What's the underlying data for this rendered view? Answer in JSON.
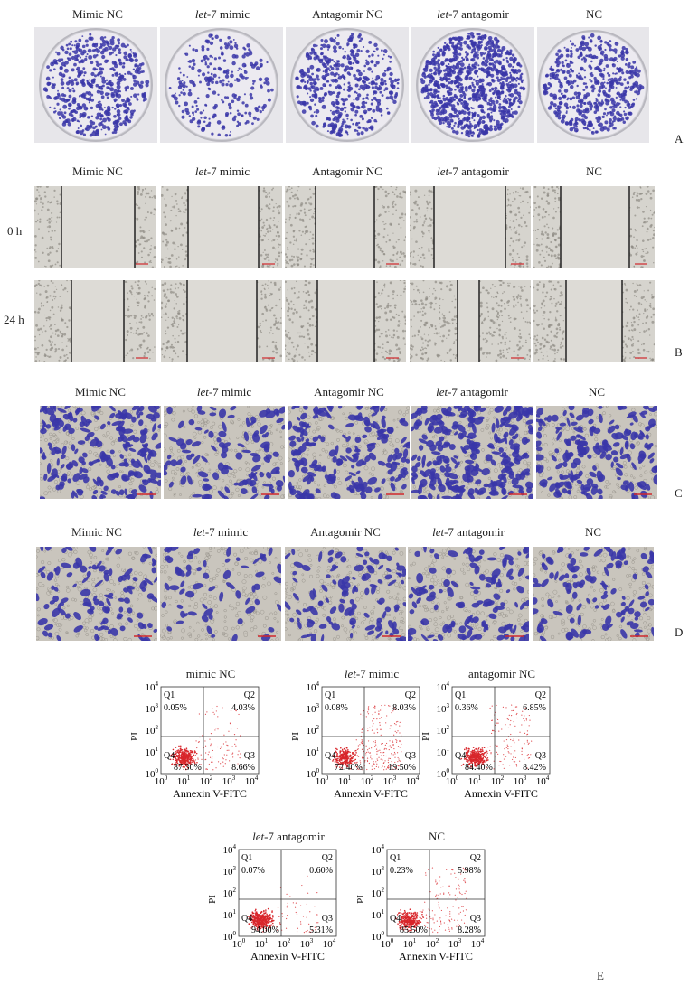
{
  "groups": [
    {
      "pre": "",
      "it": "",
      "post": "Mimic NC"
    },
    {
      "pre": "",
      "it": "let",
      "post": "-7 mimic"
    },
    {
      "pre": "",
      "it": "",
      "post": "Antagomir NC"
    },
    {
      "pre": "",
      "it": "let",
      "post": "-7 antagomir"
    },
    {
      "pre": "",
      "it": "",
      "post": "NC"
    }
  ],
  "panel_letters": {
    "A": "A",
    "B": "B",
    "C": "C",
    "D": "D",
    "E": "E"
  },
  "wound_rows": {
    "r0": "0 h",
    "r24": "24 h"
  },
  "flow": {
    "xlabel": "Annexin V-FITC",
    "ylabel": "PI",
    "tick_base": "10",
    "quads": {
      "q1": "Q1",
      "q2": "Q2",
      "q3": "Q3",
      "q4": "Q4"
    },
    "plots": [
      {
        "title_it": "",
        "title_post": "mimic NC",
        "q1": "0.05%",
        "q2": "4.03%",
        "q3": "8.66%",
        "q4": "87.30%"
      },
      {
        "title_it": "let",
        "title_post": "-7 mimic",
        "q1": "0.08%",
        "q2": "8.03%",
        "q3": "19.50%",
        "q4": "72.40%"
      },
      {
        "title_it": "",
        "title_post": "antagomir NC",
        "q1": "0.36%",
        "q2": "6.85%",
        "q3": "8.42%",
        "q4": "84.40%"
      },
      {
        "title_it": "let",
        "title_post": "-7 antagomir",
        "q1": "0.07%",
        "q2": "0.60%",
        "q3": "5.31%",
        "q4": "94.00%"
      },
      {
        "title_it": "",
        "title_post": "NC",
        "q1": "0.23%",
        "q2": "5.98%",
        "q3": "8.28%",
        "q4": "85.50%"
      }
    ]
  },
  "colors": {
    "stain": "#3a36a8",
    "dots": "#d8262b",
    "bg": "#c9c5bd"
  }
}
